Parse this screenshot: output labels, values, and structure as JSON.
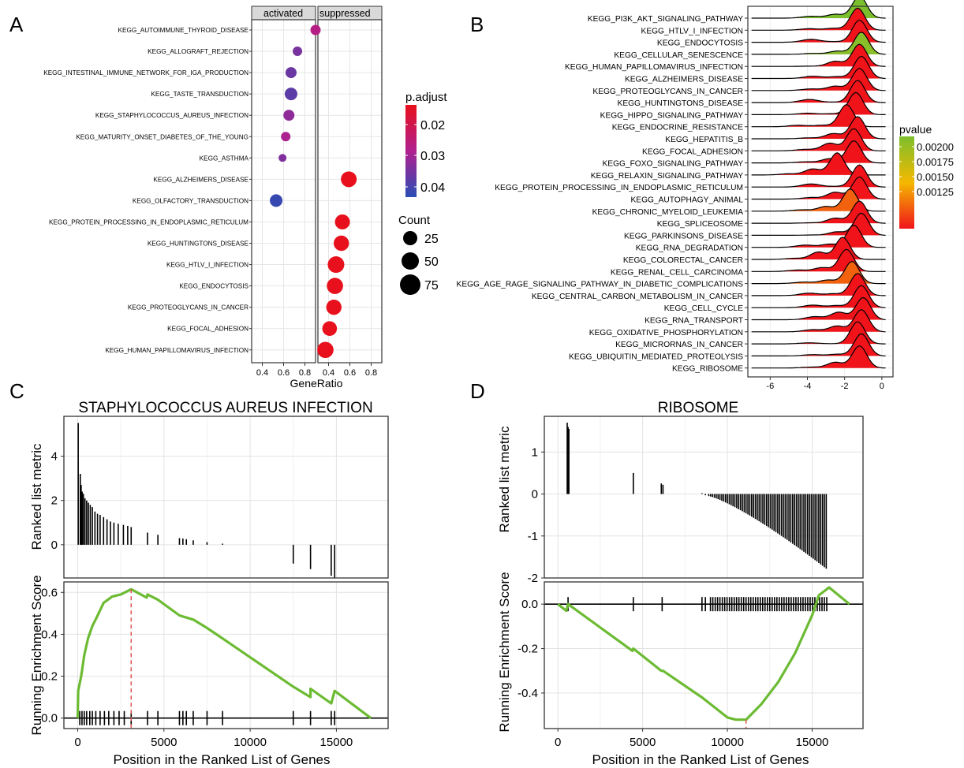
{
  "chart_data": [
    {
      "panel": "A",
      "type": "scatter",
      "title": "",
      "xlabel": "GeneRatio",
      "facets": [
        "activated",
        "suppressed"
      ],
      "xticks": [
        "0.4",
        "0.6",
        "0.8"
      ],
      "xlim": [
        0.3,
        0.9
      ],
      "legend_color_title": "p.adjust",
      "legend_color_ticks": [
        "0.02",
        "0.03",
        "0.04"
      ],
      "legend_size_title": "Count",
      "legend_size_ticks": [
        "25",
        "50",
        "75"
      ],
      "points": [
        {
          "term": "KEGG_AUTOIMMUNE_THYROID_DISEASE",
          "facet": "activated",
          "x": 0.9,
          "count": 30,
          "padj": 0.025
        },
        {
          "term": "KEGG_ALLOGRAFT_REJECTION",
          "facet": "activated",
          "x": 0.73,
          "count": 25,
          "padj": 0.034
        },
        {
          "term": "KEGG_INTESTINAL_IMMUNE_NETWORK_FOR_IGA_PRODUCTION",
          "facet": "activated",
          "x": 0.67,
          "count": 35,
          "padj": 0.036
        },
        {
          "term": "KEGG_TASTE_TRANSDUCTION",
          "facet": "activated",
          "x": 0.67,
          "count": 45,
          "padj": 0.038
        },
        {
          "term": "KEGG_STAPHYLOCOCCUS_AUREUS_INFECTION",
          "facet": "activated",
          "x": 0.65,
          "count": 35,
          "padj": 0.031
        },
        {
          "term": "KEGG_MATURITY_ONSET_DIABETES_OF_THE_YOUNG",
          "facet": "activated",
          "x": 0.62,
          "count": 25,
          "padj": 0.027
        },
        {
          "term": "KEGG_ASTHMA",
          "facet": "activated",
          "x": 0.59,
          "count": 15,
          "padj": 0.033
        },
        {
          "term": "KEGG_ALZHEIMERS_DISEASE",
          "facet": "suppressed",
          "x": 0.59,
          "count": 65,
          "padj": 0.011
        },
        {
          "term": "KEGG_OLFACTORY_TRANSDUCTION",
          "facet": "activated",
          "x": 0.53,
          "count": 45,
          "padj": 0.043
        },
        {
          "term": "KEGG_PROTEIN_PROCESSING_IN_ENDOPLASMIC_RETICULUM",
          "facet": "suppressed",
          "x": 0.53,
          "count": 60,
          "padj": 0.011
        },
        {
          "term": "KEGG_HUNTINGTONS_DISEASE",
          "facet": "suppressed",
          "x": 0.52,
          "count": 62,
          "padj": 0.011
        },
        {
          "term": "KEGG_HTLV_I_INFECTION",
          "facet": "suppressed",
          "x": 0.47,
          "count": 70,
          "padj": 0.011
        },
        {
          "term": "KEGG_ENDOCYTOSIS",
          "facet": "suppressed",
          "x": 0.46,
          "count": 68,
          "padj": 0.011
        },
        {
          "term": "KEGG_PROTEOGLYCANS_IN_CANCER",
          "facet": "suppressed",
          "x": 0.45,
          "count": 62,
          "padj": 0.011
        },
        {
          "term": "KEGG_FOCAL_ADHESION",
          "facet": "suppressed",
          "x": 0.41,
          "count": 58,
          "padj": 0.011
        },
        {
          "term": "KEGG_HUMAN_PAPILLOMAVIRUS_INFECTION",
          "facet": "suppressed",
          "x": 0.37,
          "count": 68,
          "padj": 0.011
        }
      ]
    },
    {
      "panel": "B",
      "type": "area",
      "title": "",
      "xticks": [
        "-6",
        "-4",
        "-2",
        "0"
      ],
      "xlim": [
        -7.2,
        0.6
      ],
      "legend_title": "pvalue",
      "legend_ticks": [
        "0.00200",
        "0.00175",
        "0.00150",
        "0.00125"
      ],
      "ridges": [
        {
          "label": "KEGG_PI3K_AKT_SIGNALING_PATHWAY",
          "peak": -1.2,
          "pvalue": 0.00215
        },
        {
          "label": "KEGG_HTLV_I_INFECTION",
          "peak": -1.3,
          "pvalue": 0.0011
        },
        {
          "label": "KEGG_ENDOCYTOSIS",
          "peak": -1.2,
          "pvalue": 0.0011
        },
        {
          "label": "KEGG_CELLULAR_SENESCENCE",
          "peak": -1.1,
          "pvalue": 0.0021
        },
        {
          "label": "KEGG_HUMAN_PAPILLOMAVIRUS_INFECTION",
          "peak": -1.2,
          "pvalue": 0.0011
        },
        {
          "label": "KEGG_ALZHEIMERS_DISEASE",
          "peak": -1.1,
          "pvalue": 0.0011
        },
        {
          "label": "KEGG_PROTEOGLYCANS_IN_CANCER",
          "peak": -1.2,
          "pvalue": 0.0011
        },
        {
          "label": "KEGG_HUNTINGTONS_DISEASE",
          "peak": -1.3,
          "pvalue": 0.0011
        },
        {
          "label": "KEGG_HIPPO_SIGNALING_PATHWAY",
          "peak": -1.4,
          "pvalue": 0.0011
        },
        {
          "label": "KEGG_ENDOCRINE_RESISTANCE",
          "peak": -1.9,
          "pvalue": 0.0011
        },
        {
          "label": "KEGG_HEPATITIS_B",
          "peak": -1.3,
          "pvalue": 0.0011
        },
        {
          "label": "KEGG_FOCAL_ADHESION",
          "peak": -1.5,
          "pvalue": 0.0011
        },
        {
          "label": "KEGG_FOXO_SIGNALING_PATHWAY",
          "peak": -1.5,
          "pvalue": 0.0011
        },
        {
          "label": "KEGG_RELAXIN_SIGNALING_PATHWAY",
          "peak": -2.4,
          "pvalue": 0.0011
        },
        {
          "label": "KEGG_PROTEIN_PROCESSING_IN_ENDOPLASMIC_RETICULUM",
          "peak": -1.2,
          "pvalue": 0.0011
        },
        {
          "label": "KEGG_AUTOPHAGY_ANIMAL",
          "peak": -1.2,
          "pvalue": 0.0011
        },
        {
          "label": "KEGG_CHRONIC_MYELOID_LEUKEMIA",
          "peak": -1.7,
          "pvalue": 0.00135
        },
        {
          "label": "KEGG_SPLICEOSOME",
          "peak": -1.2,
          "pvalue": 0.0011
        },
        {
          "label": "KEGG_PARKINSONS_DISEASE",
          "peak": -1.1,
          "pvalue": 0.0011
        },
        {
          "label": "KEGG_RNA_DEGRADATION",
          "peak": -1.5,
          "pvalue": 0.0011
        },
        {
          "label": "KEGG_COLORECTAL_CANCER",
          "peak": -2.1,
          "pvalue": 0.0011
        },
        {
          "label": "KEGG_RENAL_CELL_CARCINOMA",
          "peak": -1.9,
          "pvalue": 0.0011
        },
        {
          "label": "KEGG_AGE_RAGE_SIGNALING_PATHWAY_IN_DIABETIC_COMPLICATIONS",
          "peak": -1.6,
          "pvalue": 0.00135
        },
        {
          "label": "KEGG_CENTRAL_CARBON_METABOLISM_IN_CANCER",
          "peak": -1.3,
          "pvalue": 0.0011
        },
        {
          "label": "KEGG_CELL_CYCLE",
          "peak": -1.1,
          "pvalue": 0.0011
        },
        {
          "label": "KEGG_RNA_TRANSPORT",
          "peak": -1.0,
          "pvalue": 0.0011
        },
        {
          "label": "KEGG_OXIDATIVE_PHOSPHORYLATION",
          "peak": -1.1,
          "pvalue": 0.0011
        },
        {
          "label": "KEGG_MICRORNAS_IN_CANCER",
          "peak": -1.3,
          "pvalue": 0.0011
        },
        {
          "label": "KEGG_UBIQUITIN_MEDIATED_PROTEOLYSIS",
          "peak": -1.1,
          "pvalue": 0.0011
        },
        {
          "label": "KEGG_RIBOSOME",
          "peak": -1.2,
          "pvalue": 0.0011
        }
      ]
    },
    {
      "panel": "C",
      "type": "line",
      "title": "STAPHYLOCOCCUS AUREUS INFECTION",
      "xlabel": "Position in the Ranked List of Genes",
      "ylabel_top": "Ranked list metric",
      "ylabel_bottom": "Running Enrichment Score",
      "xticks": [
        "0",
        "5000",
        "10000",
        "15000"
      ],
      "xlim": [
        -800,
        18000
      ],
      "top_yticks": [
        "0",
        "2",
        "4"
      ],
      "top_ylim": [
        -1.5,
        5.8
      ],
      "bottom_yticks": [
        "0.0",
        "0.2",
        "0.4",
        "0.6"
      ],
      "bottom_ylim": [
        -0.05,
        0.65
      ],
      "peak_position": 3100,
      "metric_bars": [
        {
          "x": 30,
          "v": 5.5
        },
        {
          "x": 150,
          "v": 3.2
        },
        {
          "x": 200,
          "v": 2.7
        },
        {
          "x": 260,
          "v": 2.4
        },
        {
          "x": 330,
          "v": 2.3
        },
        {
          "x": 420,
          "v": 2.1
        },
        {
          "x": 520,
          "v": 2.0
        },
        {
          "x": 620,
          "v": 1.9
        },
        {
          "x": 730,
          "v": 1.8
        },
        {
          "x": 850,
          "v": 1.7
        },
        {
          "x": 1000,
          "v": 1.5
        },
        {
          "x": 1150,
          "v": 1.4
        },
        {
          "x": 1300,
          "v": 1.35
        },
        {
          "x": 1500,
          "v": 1.25
        },
        {
          "x": 1700,
          "v": 1.15
        },
        {
          "x": 1900,
          "v": 1.05
        },
        {
          "x": 2100,
          "v": 1.0
        },
        {
          "x": 2350,
          "v": 0.95
        },
        {
          "x": 2650,
          "v": 0.9
        },
        {
          "x": 2900,
          "v": 0.85
        },
        {
          "x": 3100,
          "v": 0.8
        },
        {
          "x": 4050,
          "v": 0.55
        },
        {
          "x": 4650,
          "v": 0.45
        },
        {
          "x": 5900,
          "v": 0.3
        },
        {
          "x": 6100,
          "v": 0.28
        },
        {
          "x": 6300,
          "v": 0.25
        },
        {
          "x": 6700,
          "v": 0.2
        },
        {
          "x": 7500,
          "v": 0.12
        },
        {
          "x": 8400,
          "v": 0.05
        },
        {
          "x": 12500,
          "v": -0.85
        },
        {
          "x": 13500,
          "v": -1.1
        },
        {
          "x": 14700,
          "v": -1.4
        },
        {
          "x": 14900,
          "v": -1.5
        }
      ],
      "hits": [
        120,
        250,
        380,
        520,
        700,
        850,
        1050,
        1300,
        1550,
        1800,
        2100,
        2400,
        2700,
        3100,
        4050,
        4650,
        5900,
        6100,
        6300,
        6700,
        7500,
        8400,
        12500,
        13500,
        14700,
        14900
      ],
      "es_curve": [
        {
          "x": 0,
          "y": 0.0
        },
        {
          "x": 30,
          "y": 0.13
        },
        {
          "x": 200,
          "y": 0.2
        },
        {
          "x": 380,
          "y": 0.3
        },
        {
          "x": 600,
          "y": 0.38
        },
        {
          "x": 850,
          "y": 0.44
        },
        {
          "x": 1100,
          "y": 0.48
        },
        {
          "x": 1500,
          "y": 0.55
        },
        {
          "x": 2000,
          "y": 0.58
        },
        {
          "x": 2500,
          "y": 0.59
        },
        {
          "x": 3100,
          "y": 0.615
        },
        {
          "x": 4000,
          "y": 0.575
        },
        {
          "x": 4050,
          "y": 0.59
        },
        {
          "x": 4650,
          "y": 0.565
        },
        {
          "x": 5900,
          "y": 0.49
        },
        {
          "x": 6300,
          "y": 0.48
        },
        {
          "x": 6700,
          "y": 0.47
        },
        {
          "x": 7500,
          "y": 0.43
        },
        {
          "x": 8400,
          "y": 0.38
        },
        {
          "x": 12500,
          "y": 0.15
        },
        {
          "x": 13500,
          "y": 0.1
        },
        {
          "x": 13500,
          "y": 0.14
        },
        {
          "x": 14700,
          "y": 0.07
        },
        {
          "x": 14900,
          "y": 0.13
        },
        {
          "x": 17000,
          "y": 0.0
        }
      ]
    },
    {
      "panel": "D",
      "type": "line",
      "title": "RIBOSOME",
      "xlabel": "Position in the Ranked List of Genes",
      "ylabel_top": "Ranked list metric",
      "ylabel_bottom": "Running Enrichment Score",
      "xticks": [
        "0",
        "5000",
        "10000",
        "15000"
      ],
      "xlim": [
        -800,
        18000
      ],
      "top_yticks": [
        "-2",
        "-1",
        "0",
        "1"
      ],
      "top_ylim": [
        -2.0,
        1.85
      ],
      "bottom_yticks": [
        "-0.4",
        "-0.2",
        "0.0"
      ],
      "bottom_ylim": [
        -0.56,
        0.1
      ],
      "peak_position": 11100,
      "es_curve": [
        {
          "x": 0,
          "y": 0.0
        },
        {
          "x": 500,
          "y": -0.03
        },
        {
          "x": 600,
          "y": 0.0
        },
        {
          "x": 4400,
          "y": -0.21
        },
        {
          "x": 4450,
          "y": -0.2
        },
        {
          "x": 6100,
          "y": -0.3
        },
        {
          "x": 6200,
          "y": -0.3
        },
        {
          "x": 8500,
          "y": -0.42
        },
        {
          "x": 10000,
          "y": -0.51
        },
        {
          "x": 10500,
          "y": -0.52
        },
        {
          "x": 11100,
          "y": -0.52
        },
        {
          "x": 12000,
          "y": -0.45
        },
        {
          "x": 13000,
          "y": -0.35
        },
        {
          "x": 14000,
          "y": -0.22
        },
        {
          "x": 15000,
          "y": -0.05
        },
        {
          "x": 15400,
          "y": 0.04
        },
        {
          "x": 16000,
          "y": 0.075
        },
        {
          "x": 17200,
          "y": 0.0
        }
      ]
    }
  ]
}
